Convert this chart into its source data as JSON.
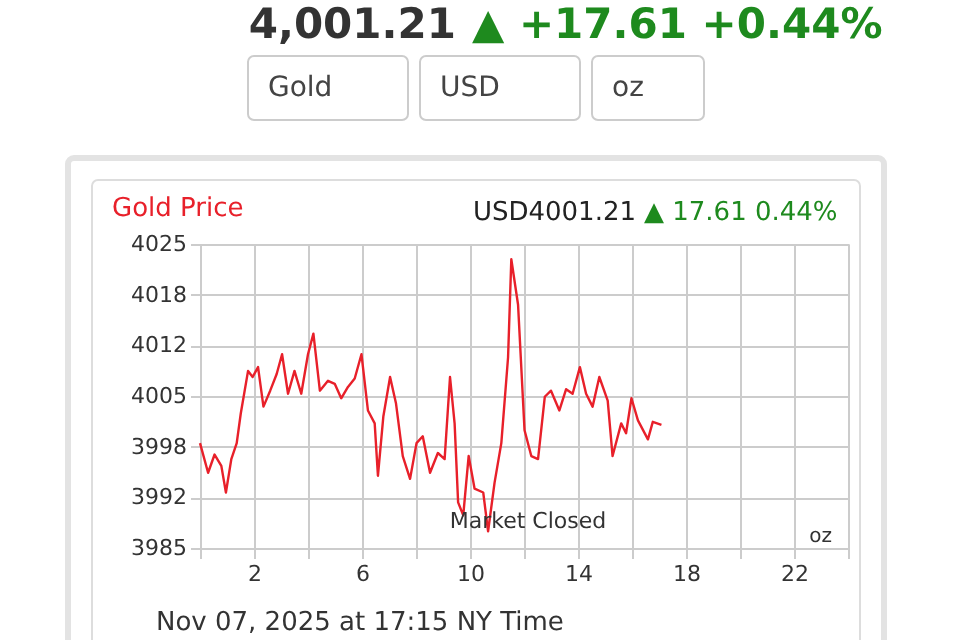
{
  "chart_data": {
    "type": "line",
    "title": "Gold Price",
    "x": [
      0,
      0.3,
      0.54,
      0.79,
      0.96,
      1.16,
      1.36,
      1.51,
      1.78,
      1.95,
      2.15,
      2.35,
      2.6,
      2.84,
      3.04,
      3.26,
      3.5,
      3.75,
      4.0,
      4.2,
      4.44,
      4.74,
      4.99,
      5.23,
      5.48,
      5.73,
      5.98,
      6.22,
      6.47,
      6.59,
      6.79,
      7.04,
      7.26,
      7.51,
      7.78,
      8.02,
      8.25,
      8.52,
      8.81,
      9.06,
      9.26,
      9.43,
      9.56,
      9.75,
      9.95,
      10.17,
      10.49,
      10.67,
      10.91,
      11.16,
      11.41,
      11.53,
      11.78,
      12.02,
      12.27,
      12.52,
      12.77,
      13.0,
      13.31,
      13.56,
      13.8,
      14.07,
      14.3,
      14.54,
      14.79,
      15.1,
      15.28,
      15.6,
      15.78,
      15.98,
      16.22,
      16.59,
      16.77,
      17.09
    ],
    "series": [
      {
        "color": "#e8202a",
        "values": [
          3998.8,
          3994.9,
          3997.3,
          3995.8,
          3992.3,
          3996.7,
          3998.8,
          4002.7,
          4008.3,
          4007.5,
          4008.8,
          4003.6,
          4005.7,
          4007.9,
          4010.5,
          4005.3,
          4008.3,
          4005.3,
          4010.5,
          4013.2,
          4005.7,
          4007.0,
          4006.6,
          4004.7,
          4006.2,
          4007.3,
          4010.5,
          4003.1,
          4001.4,
          3994.5,
          4002.3,
          4007.5,
          4004.0,
          3997.1,
          3994.1,
          3998.8,
          3999.7,
          3994.9,
          3997.5,
          3996.7,
          4007.5,
          4001.4,
          3991.0,
          3989.3,
          3997.1,
          3992.8,
          3992.3,
          3987.2,
          3993.6,
          3998.8,
          4010.1,
          4023.0,
          4017.0,
          4000.5,
          3997.1,
          3996.7,
          4004.9,
          4005.7,
          4003.1,
          4005.9,
          4005.3,
          4008.8,
          4005.3,
          4003.6,
          4007.5,
          4004.4,
          3997.1,
          4001.4,
          4000.1,
          4004.7,
          4001.8,
          3999.3,
          4001.6,
          4001.2
        ]
      }
    ],
    "xlim": [
      0,
      24
    ],
    "xticks": [
      {
        "value": 0,
        "label": null
      },
      2,
      {
        "value": 4,
        "label": null
      },
      6,
      {
        "value": 8,
        "label": null
      },
      10,
      {
        "value": 12,
        "label": null
      },
      14,
      {
        "value": 16,
        "label": null
      },
      18,
      {
        "value": 20,
        "label": null
      },
      22,
      {
        "value": 24,
        "label": null
      }
    ],
    "ylim": [
      3985,
      4025
    ],
    "yticks": [
      4025,
      {
        "value": 4018.33,
        "label": "4018"
      },
      {
        "value": 4011.67,
        "label": "4012"
      },
      4005,
      {
        "value": 3998.33,
        "label": "3998"
      },
      {
        "value": 3991.67,
        "label": "3992"
      },
      3985
    ],
    "grid": true,
    "marker": "none",
    "line_style": "solid",
    "annotations": [
      "4,001.21",
      "▲ +17.61 +0.44%",
      "Gold",
      "USD",
      "oz",
      "USD4001.21",
      "▲ 17.61 0.44%",
      "Market Closed",
      "oz",
      "Nov 07, 2025 at 17:15 NY Time"
    ]
  }
}
